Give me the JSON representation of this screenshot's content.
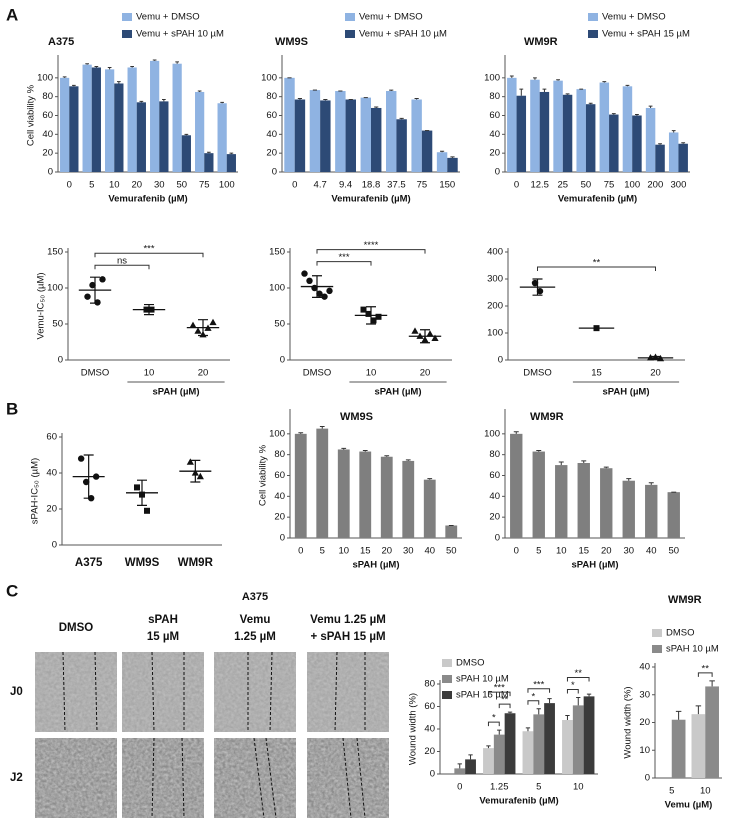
{
  "panels": [
    "A",
    "B",
    "C"
  ],
  "images": {
    "title": "A375",
    "columns": [
      [
        "DMSO"
      ],
      [
        "sPAH",
        "15 µM"
      ],
      [
        "Vemu",
        "1.25 µM"
      ],
      [
        "Vemu 1.25 µM",
        "+ sPAH 15 µM"
      ]
    ],
    "rows": [
      "J0",
      "J2"
    ]
  },
  "chart_data": [
    {
      "type": "bar",
      "title": "A375",
      "categories": [
        "0",
        "5",
        "10",
        "20",
        "30",
        "50",
        "75",
        "100"
      ],
      "series": [
        {
          "name": "Vemu + DMSO",
          "color": "#8fb3e2",
          "values": [
            100,
            114,
            109,
            111,
            118,
            115,
            85,
            73
          ],
          "errors": [
            1,
            1,
            2,
            1,
            1,
            2,
            1,
            1
          ]
        },
        {
          "name": "Vemu + sPAH 10 µM",
          "color": "#2d4a76",
          "values": [
            91,
            111,
            94,
            74,
            75,
            39,
            20,
            19
          ],
          "errors": [
            1,
            1,
            2,
            1,
            2,
            1,
            1,
            1
          ]
        }
      ],
      "ylim": [
        0,
        120
      ],
      "yticks": [
        0,
        20,
        40,
        60,
        80,
        100
      ],
      "ylabel": "Cell viability %",
      "xlabel": "Vemurafenib (µM)"
    },
    {
      "type": "bar",
      "title": "WM9S",
      "categories": [
        "0",
        "4.7",
        "9.4",
        "18.8",
        "37.5",
        "75",
        "150"
      ],
      "series": [
        {
          "name": "Vemu + DMSO",
          "color": "#8fb3e2",
          "values": [
            100,
            87,
            86,
            79,
            86,
            77,
            21
          ],
          "errors": [
            0,
            0,
            0,
            0,
            1,
            1,
            1
          ]
        },
        {
          "name": "Vemu + sPAH 10 µM",
          "color": "#2d4a76",
          "values": [
            77,
            76,
            77,
            68,
            56,
            44,
            15
          ],
          "errors": [
            1,
            1,
            0,
            1,
            1,
            0,
            1
          ]
        }
      ],
      "ylim": [
        0,
        120
      ],
      "yticks": [
        0,
        20,
        40,
        60,
        80,
        100
      ],
      "xlabel": "Vemurafenib (µM)"
    },
    {
      "type": "bar",
      "title": "WM9R",
      "categories": [
        "0",
        "12.5",
        "25",
        "50",
        "75",
        "100",
        "200",
        "300"
      ],
      "series": [
        {
          "name": "Vemu + DMSO",
          "color": "#8fb3e2",
          "values": [
            100,
            98,
            97,
            88,
            95,
            91,
            68,
            42
          ],
          "errors": [
            2,
            2,
            1,
            0,
            1,
            1,
            2,
            2
          ]
        },
        {
          "name": "Vemu + sPAH 15 µM",
          "color": "#2d4a76",
          "values": [
            81,
            85,
            82,
            72,
            61,
            60,
            29,
            30
          ],
          "errors": [
            7,
            3,
            1,
            1,
            1,
            1,
            1,
            1
          ]
        }
      ],
      "ylim": [
        0,
        120
      ],
      "yticks": [
        0,
        20,
        40,
        60,
        80,
        100
      ],
      "xlabel": "Vemurafenib (µM)"
    },
    {
      "type": "strip",
      "categories": [
        "DMSO",
        "10",
        "20"
      ],
      "markers": [
        "circle",
        "square",
        "triangle"
      ],
      "groups": [
        {
          "points": [
            88,
            104,
            80,
            112
          ],
          "mean": 97,
          "sd": 18
        },
        {
          "points": [
            70,
            70
          ],
          "mean": 70,
          "sd": 7
        },
        {
          "points": [
            48,
            40,
            35,
            44,
            52
          ],
          "mean": 45,
          "sd": 11
        }
      ],
      "ylim": [
        0,
        150
      ],
      "yticks": [
        0,
        50,
        100,
        150
      ],
      "ylabel": "Vemu-IC₅₀ (µM)",
      "xlabel": "sPAH (µM)",
      "brackets": [
        {
          "between": [
            "DMSO",
            "10"
          ],
          "label": "ns"
        },
        {
          "between": [
            "DMSO",
            "20"
          ],
          "label": "***"
        }
      ]
    },
    {
      "type": "strip",
      "categories": [
        "DMSO",
        "10",
        "20"
      ],
      "markers": [
        "circle",
        "square",
        "triangle"
      ],
      "groups": [
        {
          "points": [
            120,
            110,
            100,
            92,
            88,
            96
          ],
          "mean": 102,
          "sd": 15
        },
        {
          "points": [
            70,
            64,
            55,
            60
          ],
          "mean": 62,
          "sd": 12
        },
        {
          "points": [
            40,
            33,
            28,
            36,
            30
          ],
          "mean": 33,
          "sd": 9
        }
      ],
      "ylim": [
        0,
        150
      ],
      "yticks": [
        0,
        50,
        100,
        150
      ],
      "xlabel": "sPAH (µM)",
      "brackets": [
        {
          "between": [
            "DMSO",
            "10"
          ],
          "label": "***"
        },
        {
          "between": [
            "DMSO",
            "20"
          ],
          "label": "****"
        }
      ]
    },
    {
      "type": "strip",
      "categories": [
        "DMSO",
        "15",
        "20"
      ],
      "markers": [
        "circle",
        "square",
        "triangle"
      ],
      "groups": [
        {
          "points": [
            285,
            255
          ],
          "mean": 270,
          "sd": 30
        },
        {
          "points": [
            118
          ],
          "mean": 118,
          "sd": 0
        },
        {
          "points": [
            8,
            10,
            5
          ],
          "mean": 8,
          "sd": 5
        }
      ],
      "ylim": [
        0,
        400
      ],
      "yticks": [
        0,
        100,
        200,
        300,
        400
      ],
      "xlabel": "sPAH (µM)",
      "brackets": [
        {
          "between": [
            "DMSO",
            "20"
          ],
          "label": "**"
        }
      ]
    },
    {
      "type": "strip",
      "categories": [
        "A375",
        "WM9S",
        "WM9R"
      ],
      "markers": [
        "circle",
        "square",
        "triangle"
      ],
      "groups": [
        {
          "points": [
            48,
            35,
            26,
            38
          ],
          "mean": 38,
          "sd": 12
        },
        {
          "points": [
            32,
            28,
            19
          ],
          "mean": 29,
          "sd": 7
        },
        {
          "points": [
            46,
            40,
            38
          ],
          "mean": 41,
          "sd": 6
        }
      ],
      "ylim": [
        0,
        60
      ],
      "yticks": [
        0,
        20,
        40,
        60
      ],
      "ylabel": "sPAH-IC₅₀ (µM)"
    },
    {
      "type": "bar",
      "title": "WM9S",
      "categories": [
        "0",
        "5",
        "10",
        "15",
        "20",
        "30",
        "40",
        "50"
      ],
      "series": [
        {
          "color": "#7f7f7f",
          "values": [
            100,
            105,
            85,
            83,
            78,
            74,
            56,
            12
          ],
          "errors": [
            1,
            2,
            1,
            1,
            1,
            1,
            1,
            0
          ]
        }
      ],
      "ylim": [
        0,
        120
      ],
      "yticks": [
        0,
        20,
        40,
        60,
        80,
        100
      ],
      "ylabel": "Cell viability %",
      "xlabel": "sPAH (µM)"
    },
    {
      "type": "bar",
      "title": "WM9R",
      "categories": [
        "0",
        "5",
        "10",
        "15",
        "20",
        "30",
        "40",
        "50"
      ],
      "series": [
        {
          "color": "#7f7f7f",
          "values": [
            100,
            83,
            70,
            72,
            67,
            55,
            51,
            44
          ],
          "errors": [
            2,
            1,
            3,
            2,
            1,
            2,
            2,
            0
          ]
        }
      ],
      "ylim": [
        0,
        120
      ],
      "yticks": [
        0,
        20,
        40,
        60,
        80,
        100
      ],
      "xlabel": "sPAH (µM)"
    },
    {
      "type": "bar",
      "categories": [
        "0",
        "1.25",
        "5",
        "10"
      ],
      "series": [
        {
          "name": "DMSO",
          "color": "#c9c9c9",
          "values": [
            null,
            23,
            38,
            48
          ],
          "errors": [
            null,
            2,
            3,
            4
          ]
        },
        {
          "name": "sPAH 10 µM",
          "color": "#8a8a8a",
          "values": [
            5,
            35,
            53,
            61
          ],
          "errors": [
            4,
            4,
            5,
            7
          ]
        },
        {
          "name": "sPAH 15 µM",
          "color": "#3b3b3b",
          "values": [
            13,
            54,
            63,
            69
          ],
          "errors": [
            4,
            1,
            4,
            2
          ]
        }
      ],
      "ylim": [
        0,
        80
      ],
      "yticks": [
        0,
        20,
        40,
        60,
        80
      ],
      "ylabel": "Wound width (%)",
      "xlabel": "Vemurafenib (µM)",
      "brackets": [
        {
          "category": "1.25",
          "between": [
            "DMSO",
            "sPAH 10 µM"
          ],
          "label": "*"
        },
        {
          "category": "1.25",
          "between": [
            "sPAH 10 µM",
            "sPAH 15 µM"
          ],
          "label": "**"
        },
        {
          "category": "1.25",
          "between": [
            "DMSO",
            "sPAH 15 µM"
          ],
          "label": "***"
        },
        {
          "category": "5",
          "between": [
            "DMSO",
            "sPAH 10 µM"
          ],
          "label": "*"
        },
        {
          "category": "5",
          "between": [
            "DMSO",
            "sPAH 15 µM"
          ],
          "label": "***"
        },
        {
          "category": "10",
          "between": [
            "DMSO",
            "sPAH 10 µM"
          ],
          "label": "*"
        },
        {
          "category": "10",
          "between": [
            "DMSO",
            "sPAH 15 µM"
          ],
          "label": "**"
        }
      ]
    },
    {
      "type": "bar",
      "title": "WM9R",
      "categories": [
        "5",
        "10"
      ],
      "series": [
        {
          "name": "DMSO",
          "color": "#c9c9c9",
          "values": [
            null,
            23
          ],
          "errors": [
            null,
            3
          ]
        },
        {
          "name": "sPAH 10 µM",
          "color": "#8a8a8a",
          "values": [
            21,
            33
          ],
          "errors": [
            3,
            2
          ]
        }
      ],
      "ylim": [
        0,
        40
      ],
      "yticks": [
        0,
        10,
        20,
        30,
        40
      ],
      "ylabel": "Wound width (%)",
      "xlabel": "Vemu (µM)",
      "brackets": [
        {
          "category": "10",
          "between": [
            "DMSO",
            "sPAH 10 µM"
          ],
          "label": "**"
        }
      ]
    }
  ]
}
